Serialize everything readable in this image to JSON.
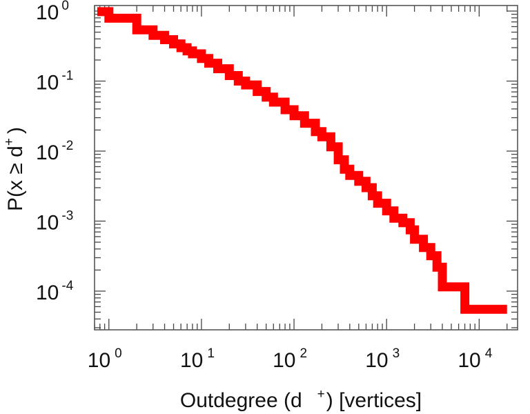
{
  "chart_data": {
    "type": "line",
    "step": true,
    "xscale": "log",
    "yscale": "log",
    "xlim": [
      0.7,
      26000
    ],
    "ylim": [
      2.8e-05,
      1.2
    ],
    "xticks": [
      {
        "base": "10",
        "exp": "0"
      },
      {
        "base": "10",
        "exp": "1"
      },
      {
        "base": "10",
        "exp": "2"
      },
      {
        "base": "10",
        "exp": "3"
      },
      {
        "base": "10",
        "exp": "4"
      }
    ],
    "yticks": [
      {
        "base": "10",
        "exp": "0"
      },
      {
        "base": "10",
        "exp": "-1"
      },
      {
        "base": "10",
        "exp": "-2"
      },
      {
        "base": "10",
        "exp": "-3"
      },
      {
        "base": "10",
        "exp": "-4"
      }
    ],
    "xlabel": {
      "pre": "Outdegree (d",
      "sup": "+",
      "post": ") [vertices]"
    },
    "ylabel": {
      "pre": "P(x ≥ d",
      "sup": "+",
      "post": ")"
    },
    "grid": false,
    "series": [
      {
        "color": "#ff0000",
        "points": [
          [
            0.75,
            0.98
          ],
          [
            1,
            0.79
          ],
          [
            2,
            0.54
          ],
          [
            3,
            0.45
          ],
          [
            4,
            0.39
          ],
          [
            5,
            0.34
          ],
          [
            6,
            0.3
          ],
          [
            7,
            0.27
          ],
          [
            8,
            0.245
          ],
          [
            10,
            0.21
          ],
          [
            12,
            0.18
          ],
          [
            15,
            0.15
          ],
          [
            20,
            0.12
          ],
          [
            25,
            0.1
          ],
          [
            30,
            0.088
          ],
          [
            40,
            0.071
          ],
          [
            50,
            0.059
          ],
          [
            60,
            0.05
          ],
          [
            80,
            0.039
          ],
          [
            100,
            0.032
          ],
          [
            130,
            0.025
          ],
          [
            170,
            0.019
          ],
          [
            200,
            0.016
          ],
          [
            250,
            0.0115
          ],
          [
            300,
            0.0075
          ],
          [
            350,
            0.0055
          ],
          [
            400,
            0.0045
          ],
          [
            500,
            0.0037
          ],
          [
            600,
            0.003
          ],
          [
            700,
            0.0023
          ],
          [
            800,
            0.0018
          ],
          [
            1000,
            0.0014
          ],
          [
            1200,
            0.0011
          ],
          [
            1500,
            0.00095
          ],
          [
            1800,
            0.00075
          ],
          [
            2000,
            0.00055
          ],
          [
            2500,
            0.00042
          ],
          [
            3000,
            0.00032
          ],
          [
            3500,
            0.00022
          ],
          [
            4000,
            0.000115
          ],
          [
            7000,
            5.5e-05
          ],
          [
            20000,
            5.5e-05
          ]
        ]
      }
    ]
  }
}
